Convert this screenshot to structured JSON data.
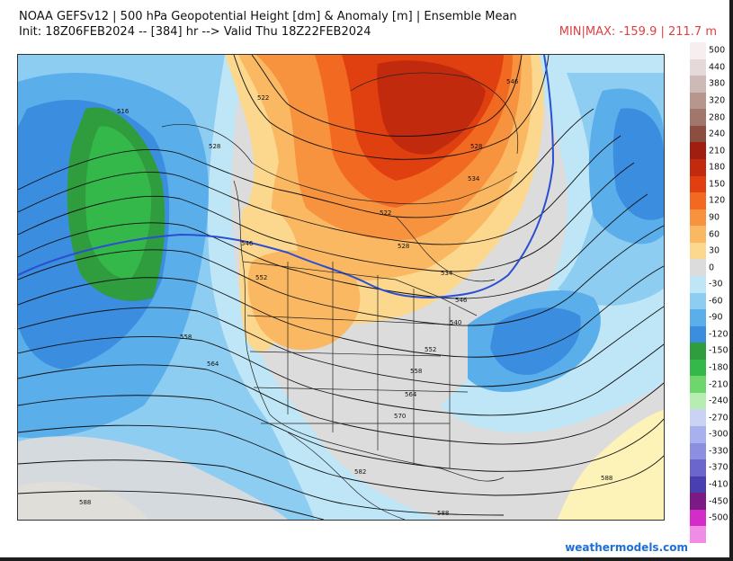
{
  "header": {
    "title": "NOAA GEFSv12 | 500 hPa Geopotential Height [dm] & Anomaly [m] | Ensemble Mean",
    "init_line": "Init: 18Z06FEB2024 -- [384] hr --> Valid Thu 18Z22FEB2024",
    "minmax": "MIN|MAX: -159.9 | 211.7 m"
  },
  "colorbar": {
    "labels": [
      "500",
      "440",
      "380",
      "320",
      "280",
      "240",
      "210",
      "180",
      "150",
      "120",
      "90",
      "60",
      "30",
      "0",
      "-30",
      "-60",
      "-90",
      "-120",
      "-150",
      "-180",
      "-210",
      "-240",
      "-270",
      "-300",
      "-330",
      "-370",
      "-410",
      "-450",
      "-500"
    ],
    "colors": [
      "#f7eef0",
      "#e6d9da",
      "#cdb9b5",
      "#b7978d",
      "#a2776b",
      "#8c4e40",
      "#a01e10",
      "#c22a0e",
      "#e0400f",
      "#f26a22",
      "#f7923e",
      "#fab862",
      "#fbd88e",
      "#dcdcdc",
      "#bfe6f7",
      "#8ecdf2",
      "#5aaeea",
      "#3b8de0",
      "#2f9c3e",
      "#35b84a",
      "#6fd66e",
      "#b6edb0",
      "#cbd3f5",
      "#a8b0ee",
      "#8c8fe0",
      "#6b66cc",
      "#4a3fb0",
      "#7a1a82",
      "#d42cc8",
      "#f08ce6"
    ]
  },
  "map": {
    "contour_labels": [
      "516",
      "522",
      "528",
      "528",
      "534",
      "522",
      "528",
      "546",
      "534",
      "546",
      "552",
      "540",
      "558",
      "564",
      "552",
      "558",
      "564",
      "570",
      "582",
      "588",
      "588",
      "588",
      "546"
    ]
  },
  "credit": "weathermodels.com"
}
